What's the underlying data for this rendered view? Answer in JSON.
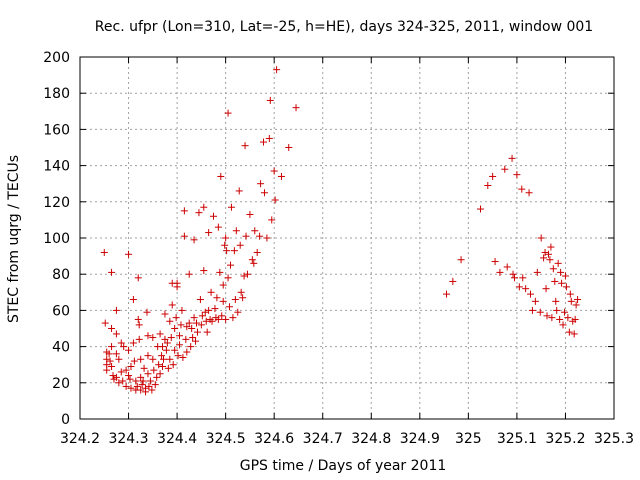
{
  "chart_data": {
    "type": "scatter",
    "title": "Rec. ufpr (Lon=310, Lat=-25, h=HE), days 324-325, 2011, window 001",
    "xlabel": "GPS time / Days of year 2011",
    "ylabel": "STEC from uqrg / TECUs",
    "xlim": [
      324.2,
      325.3
    ],
    "ylim": [
      0,
      200
    ],
    "xticks": [
      "324.2",
      "324.3",
      "324.4",
      "324.5",
      "324.6",
      "324.7",
      "324.8",
      "324.9",
      "325",
      "325.1",
      "325.2",
      "325.3"
    ],
    "yticks": [
      "0",
      "20",
      "40",
      "60",
      "80",
      "100",
      "120",
      "140",
      "160",
      "180",
      "200"
    ],
    "grid": true,
    "legend": "none",
    "marker": "+",
    "color": "#cc0000",
    "points": [
      [
        324.25,
        92
      ],
      [
        324.252,
        53
      ],
      [
        324.255,
        33
      ],
      [
        324.255,
        37
      ],
      [
        324.255,
        30
      ],
      [
        324.255,
        27
      ],
      [
        324.26,
        36
      ],
      [
        324.262,
        32
      ],
      [
        324.265,
        81
      ],
      [
        324.265,
        50
      ],
      [
        324.265,
        40
      ],
      [
        324.265,
        29
      ],
      [
        324.268,
        24
      ],
      [
        324.27,
        22
      ],
      [
        324.275,
        60
      ],
      [
        324.275,
        47
      ],
      [
        324.275,
        36
      ],
      [
        324.275,
        23
      ],
      [
        324.28,
        33
      ],
      [
        324.28,
        20
      ],
      [
        324.285,
        42
      ],
      [
        324.285,
        26
      ],
      [
        324.288,
        21
      ],
      [
        324.29,
        40
      ],
      [
        324.295,
        27
      ],
      [
        324.295,
        18
      ],
      [
        324.3,
        38
      ],
      [
        324.3,
        24
      ],
      [
        324.3,
        91
      ],
      [
        324.303,
        22
      ],
      [
        324.305,
        17
      ],
      [
        324.305,
        29
      ],
      [
        324.31,
        66
      ],
      [
        324.31,
        42
      ],
      [
        324.312,
        32
      ],
      [
        324.315,
        21
      ],
      [
        324.315,
        16
      ],
      [
        324.318,
        18
      ],
      [
        324.32,
        78
      ],
      [
        324.32,
        55
      ],
      [
        324.322,
        52
      ],
      [
        324.322,
        44
      ],
      [
        324.325,
        33
      ],
      [
        324.325,
        23
      ],
      [
        324.325,
        16
      ],
      [
        324.328,
        19
      ],
      [
        324.33,
        21
      ],
      [
        324.332,
        28
      ],
      [
        324.335,
        15
      ],
      [
        324.335,
        17
      ],
      [
        324.338,
        59
      ],
      [
        324.34,
        46
      ],
      [
        324.34,
        35
      ],
      [
        324.34,
        25
      ],
      [
        324.342,
        18
      ],
      [
        324.345,
        21
      ],
      [
        324.348,
        16
      ],
      [
        324.35,
        45
      ],
      [
        324.35,
        33
      ],
      [
        324.352,
        27
      ],
      [
        324.355,
        19
      ],
      [
        324.358,
        23
      ],
      [
        324.36,
        40
      ],
      [
        324.362,
        30
      ],
      [
        324.365,
        25
      ],
      [
        324.365,
        47
      ],
      [
        324.368,
        35
      ],
      [
        324.37,
        40
      ],
      [
        324.37,
        29
      ],
      [
        324.372,
        33
      ],
      [
        324.375,
        58
      ],
      [
        324.375,
        44
      ],
      [
        324.378,
        38
      ],
      [
        324.38,
        42
      ],
      [
        324.382,
        28
      ],
      [
        324.385,
        54
      ],
      [
        324.385,
        33
      ],
      [
        324.388,
        45
      ],
      [
        324.39,
        63
      ],
      [
        324.39,
        75
      ],
      [
        324.392,
        30
      ],
      [
        324.395,
        50
      ],
      [
        324.395,
        38
      ],
      [
        324.398,
        56
      ],
      [
        324.4,
        73
      ],
      [
        324.4,
        75
      ],
      [
        324.402,
        35
      ],
      [
        324.405,
        46
      ],
      [
        324.405,
        41
      ],
      [
        324.408,
        52
      ],
      [
        324.41,
        60
      ],
      [
        324.412,
        34
      ],
      [
        324.415,
        115
      ],
      [
        324.415,
        101
      ],
      [
        324.418,
        44
      ],
      [
        324.42,
        51
      ],
      [
        324.42,
        37
      ],
      [
        324.425,
        80
      ],
      [
        324.425,
        53
      ],
      [
        324.428,
        40
      ],
      [
        324.43,
        50
      ],
      [
        324.432,
        45
      ],
      [
        324.435,
        99
      ],
      [
        324.435,
        56
      ],
      [
        324.438,
        43
      ],
      [
        324.44,
        53
      ],
      [
        324.442,
        48
      ],
      [
        324.445,
        114
      ],
      [
        324.448,
        66
      ],
      [
        324.45,
        52
      ],
      [
        324.452,
        57
      ],
      [
        324.455,
        82
      ],
      [
        324.455,
        117
      ],
      [
        324.458,
        59
      ],
      [
        324.46,
        54
      ],
      [
        324.462,
        48
      ],
      [
        324.465,
        103
      ],
      [
        324.465,
        60
      ],
      [
        324.468,
        55
      ],
      [
        324.47,
        70
      ],
      [
        324.472,
        54
      ],
      [
        324.475,
        112
      ],
      [
        324.478,
        61
      ],
      [
        324.48,
        56
      ],
      [
        324.482,
        67
      ],
      [
        324.485,
        106
      ],
      [
        324.485,
        55
      ],
      [
        324.488,
        81
      ],
      [
        324.49,
        134
      ],
      [
        324.492,
        57
      ],
      [
        324.495,
        74
      ],
      [
        324.495,
        65
      ],
      [
        324.498,
        96
      ],
      [
        324.5,
        100
      ],
      [
        324.5,
        55
      ],
      [
        324.502,
        93
      ],
      [
        324.505,
        169
      ],
      [
        324.505,
        78
      ],
      [
        324.508,
        62
      ],
      [
        324.51,
        85
      ],
      [
        324.512,
        117
      ],
      [
        324.515,
        56
      ],
      [
        324.518,
        93
      ],
      [
        324.52,
        66
      ],
      [
        324.522,
        104
      ],
      [
        324.525,
        59
      ],
      [
        324.528,
        126
      ],
      [
        324.53,
        96
      ],
      [
        324.532,
        70
      ],
      [
        324.535,
        67
      ],
      [
        324.538,
        79
      ],
      [
        324.54,
        151
      ],
      [
        324.542,
        101
      ],
      [
        324.545,
        80
      ],
      [
        324.55,
        113
      ],
      [
        324.555,
        88
      ],
      [
        324.558,
        86
      ],
      [
        324.56,
        104
      ],
      [
        324.565,
        92
      ],
      [
        324.57,
        101
      ],
      [
        324.572,
        130
      ],
      [
        324.578,
        153
      ],
      [
        324.58,
        125
      ],
      [
        324.585,
        100
      ],
      [
        324.59,
        155
      ],
      [
        324.592,
        176
      ],
      [
        324.595,
        110
      ],
      [
        324.6,
        137
      ],
      [
        324.602,
        121
      ],
      [
        324.605,
        193
      ],
      [
        324.615,
        134
      ],
      [
        324.63,
        150
      ],
      [
        324.645,
        172
      ],
      [
        324.955,
        69
      ],
      [
        324.968,
        76
      ],
      [
        324.985,
        88
      ],
      [
        325.025,
        116
      ],
      [
        325.04,
        129
      ],
      [
        325.05,
        134
      ],
      [
        325.055,
        87
      ],
      [
        325.065,
        81
      ],
      [
        325.075,
        138
      ],
      [
        325.08,
        84
      ],
      [
        325.09,
        144
      ],
      [
        325.092,
        80
      ],
      [
        325.095,
        78
      ],
      [
        325.1,
        135
      ],
      [
        325.105,
        73
      ],
      [
        325.11,
        127
      ],
      [
        325.112,
        78
      ],
      [
        325.118,
        72
      ],
      [
        325.125,
        125
      ],
      [
        325.128,
        69
      ],
      [
        325.132,
        60
      ],
      [
        325.138,
        65
      ],
      [
        325.142,
        81
      ],
      [
        325.148,
        59
      ],
      [
        325.15,
        100
      ],
      [
        325.155,
        89
      ],
      [
        325.158,
        92
      ],
      [
        325.16,
        72
      ],
      [
        325.162,
        57
      ],
      [
        325.165,
        91
      ],
      [
        325.168,
        88
      ],
      [
        325.17,
        95
      ],
      [
        325.172,
        56
      ],
      [
        325.175,
        83
      ],
      [
        325.178,
        76
      ],
      [
        325.18,
        65
      ],
      [
        325.182,
        60
      ],
      [
        325.185,
        86
      ],
      [
        325.188,
        55
      ],
      [
        325.19,
        81
      ],
      [
        325.192,
        75
      ],
      [
        325.195,
        52
      ],
      [
        325.198,
        59
      ],
      [
        325.2,
        79
      ],
      [
        325.202,
        73
      ],
      [
        325.205,
        56
      ],
      [
        325.208,
        48
      ],
      [
        325.21,
        69
      ],
      [
        325.212,
        65
      ],
      [
        325.215,
        54
      ],
      [
        325.218,
        47
      ],
      [
        325.22,
        55
      ],
      [
        325.222,
        63
      ],
      [
        325.225,
        66
      ]
    ]
  }
}
